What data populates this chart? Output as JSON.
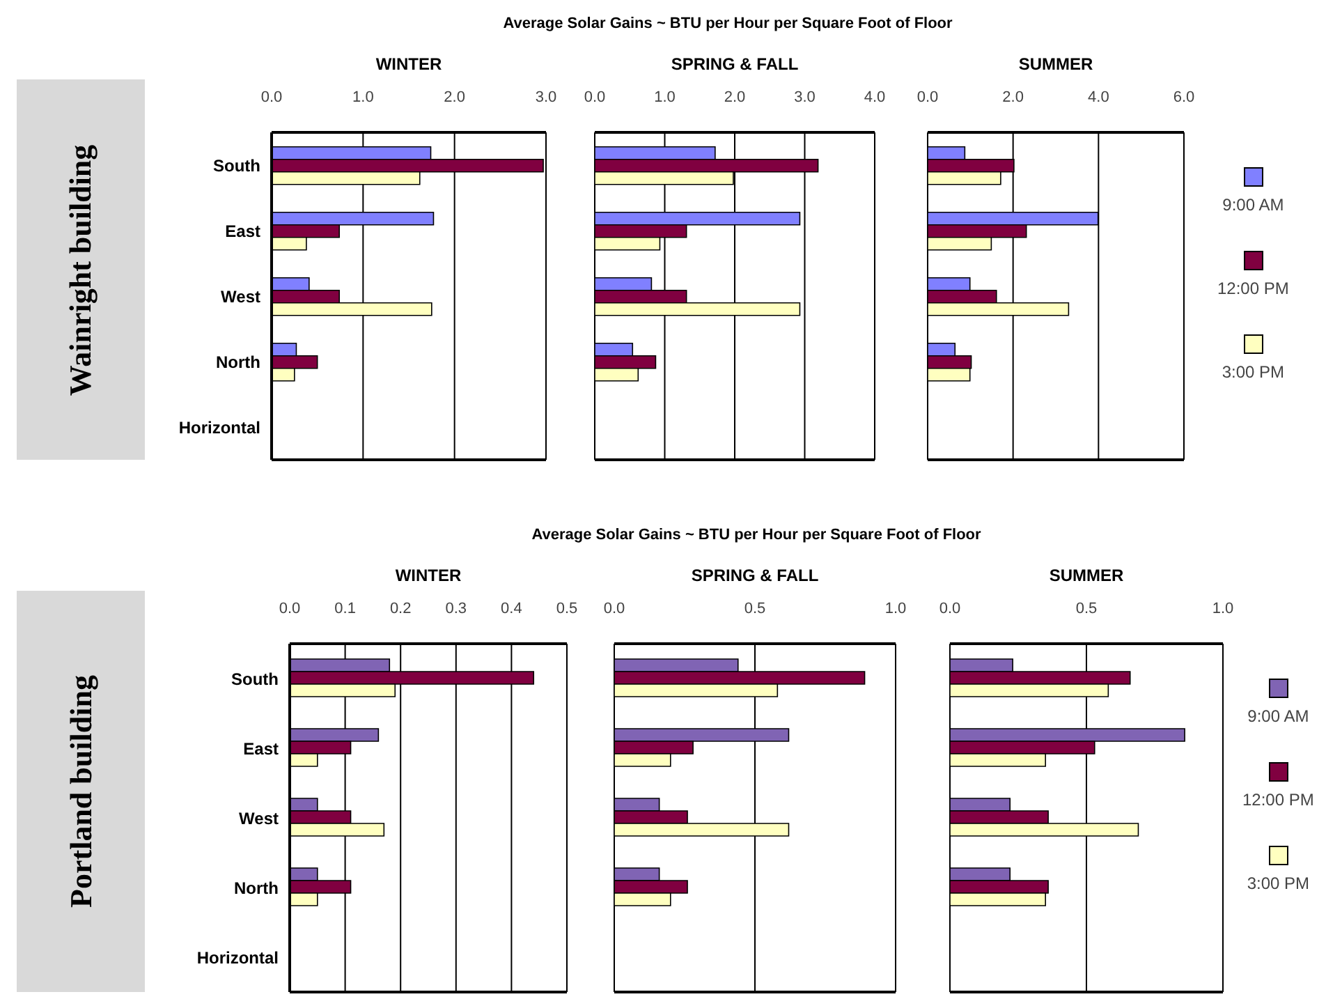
{
  "chart_data": [
    {
      "type": "bar",
      "orientation": "horizontal",
      "title": "WINTER",
      "ylabel": "Wainright building",
      "annotations": [
        "Average Solar Gains ~ BTU per Hour per Square Foot of Floor"
      ],
      "categories": [
        "South",
        "East",
        "West",
        "North",
        "Horizontal"
      ],
      "series": [
        {
          "color": "#8080ff",
          "values": [
            1.74,
            1.77,
            0.41,
            0.27,
            null
          ]
        },
        {
          "color": "#800040",
          "values": [
            2.97,
            0.74,
            0.74,
            0.5,
            null
          ]
        },
        {
          "color": "#ffffc0",
          "values": [
            1.62,
            0.38,
            1.75,
            0.25,
            null
          ]
        }
      ],
      "xlim": [
        0,
        3
      ],
      "xticks": [
        {
          "value": 0,
          "label": "0.0"
        },
        {
          "value": 1,
          "label": "1.0"
        },
        {
          "value": 2,
          "label": "2.0"
        },
        {
          "value": 3,
          "label": "3.0"
        }
      ],
      "grid": "x"
    },
    {
      "type": "bar",
      "orientation": "horizontal",
      "title": "SPRING & FALL",
      "categories": [
        null,
        null,
        null,
        null,
        null
      ],
      "series": [
        {
          "color": "#8080ff",
          "values": [
            1.72,
            2.93,
            0.81,
            0.54,
            null
          ]
        },
        {
          "color": "#800040",
          "values": [
            3.19,
            1.31,
            1.31,
            0.87,
            null
          ]
        },
        {
          "color": "#ffffc0",
          "values": [
            1.98,
            0.93,
            2.93,
            0.62,
            null
          ]
        }
      ],
      "xlim": [
        0,
        4
      ],
      "xticks": [
        {
          "value": 0,
          "label": "0.0"
        },
        {
          "value": 1,
          "label": "1.0"
        },
        {
          "value": 2,
          "label": "2.0"
        },
        {
          "value": 3,
          "label": "3.0"
        },
        {
          "value": 4,
          "label": "4.0"
        }
      ],
      "grid": "x",
      "tick_labels": "x"
    },
    {
      "type": "bar",
      "orientation": "horizontal",
      "title": "SUMMER",
      "categories": [
        null,
        null,
        null,
        null,
        null
      ],
      "series": [
        {
          "name": "9:00 AM",
          "color": "#8080ff",
          "values": [
            0.87,
            3.99,
            0.99,
            0.64,
            null
          ]
        },
        {
          "name": "12:00 PM",
          "color": "#800040",
          "values": [
            2.02,
            2.31,
            1.61,
            1.02,
            null
          ]
        },
        {
          "name": "3:00 PM",
          "color": "#ffffc0",
          "values": [
            1.71,
            1.49,
            3.3,
            0.99,
            null
          ]
        }
      ],
      "xlim": [
        0,
        6
      ],
      "xticks": [
        {
          "value": 0,
          "label": "0.0"
        },
        {
          "value": 2,
          "label": "2.0"
        },
        {
          "value": 4,
          "label": "4.0"
        },
        {
          "value": 6,
          "label": "6.0"
        }
      ],
      "grid": "x",
      "tick_labels": "x",
      "legend": "right"
    },
    {
      "type": "bar",
      "orientation": "horizontal",
      "title": "WINTER",
      "ylabel": "Portland building",
      "annotations": [
        "Average Solar Gains ~ BTU per Hour per Square Foot of Floor"
      ],
      "categories": [
        "South",
        "East",
        "West",
        "North",
        "Horizontal"
      ],
      "series": [
        {
          "color": "#8064b4",
          "values": [
            0.18,
            0.16,
            0.05,
            0.05,
            null
          ]
        },
        {
          "color": "#800040",
          "values": [
            0.44,
            0.11,
            0.11,
            0.11,
            null
          ]
        },
        {
          "color": "#ffffc0",
          "values": [
            0.19,
            0.05,
            0.17,
            0.05,
            null
          ]
        }
      ],
      "xlim": [
        0,
        0.5
      ],
      "xticks": [
        {
          "value": 0,
          "label": "0.0"
        },
        {
          "value": 0.1,
          "label": "0.1"
        },
        {
          "value": 0.2,
          "label": "0.2"
        },
        {
          "value": 0.3,
          "label": "0.3"
        },
        {
          "value": 0.4,
          "label": "0.4"
        },
        {
          "value": 0.5,
          "label": "0.5"
        }
      ],
      "grid": "x"
    },
    {
      "type": "bar",
      "orientation": "horizontal",
      "title": "SPRING & FALL",
      "categories": [
        null,
        null,
        null,
        null,
        null
      ],
      "series": [
        {
          "color": "#8064b4",
          "values": [
            0.44,
            0.62,
            0.16,
            0.16,
            null
          ]
        },
        {
          "color": "#800040",
          "values": [
            0.89,
            0.28,
            0.26,
            0.26,
            null
          ]
        },
        {
          "color": "#ffffc0",
          "values": [
            0.58,
            0.2,
            0.62,
            0.2,
            null
          ]
        }
      ],
      "xlim": [
        0,
        1
      ],
      "xticks": [
        {
          "value": 0,
          "label": "0.0"
        },
        {
          "value": 0.5,
          "label": "0.5"
        },
        {
          "value": 1,
          "label": "1.0"
        }
      ],
      "grid": "x",
      "tick_labels": "x"
    },
    {
      "type": "bar",
      "orientation": "horizontal",
      "title": "SUMMER",
      "categories": [
        null,
        null,
        null,
        null,
        null
      ],
      "series": [
        {
          "name": "9:00 AM",
          "color": "#8064b4",
          "values": [
            0.23,
            0.86,
            0.22,
            0.22,
            null
          ]
        },
        {
          "name": "12:00 PM",
          "color": "#800040",
          "values": [
            0.66,
            0.53,
            0.36,
            0.36,
            null
          ]
        },
        {
          "name": "3:00 PM",
          "color": "#ffffc0",
          "values": [
            0.58,
            0.35,
            0.69,
            0.35,
            null
          ]
        }
      ],
      "xlim": [
        0,
        1
      ],
      "xticks": [
        {
          "value": 0,
          "label": "0.0"
        },
        {
          "value": 0.5,
          "label": "0.5"
        },
        {
          "value": 1,
          "label": "1.0"
        }
      ],
      "grid": "x",
      "tick_labels": "x",
      "legend": "right"
    }
  ]
}
